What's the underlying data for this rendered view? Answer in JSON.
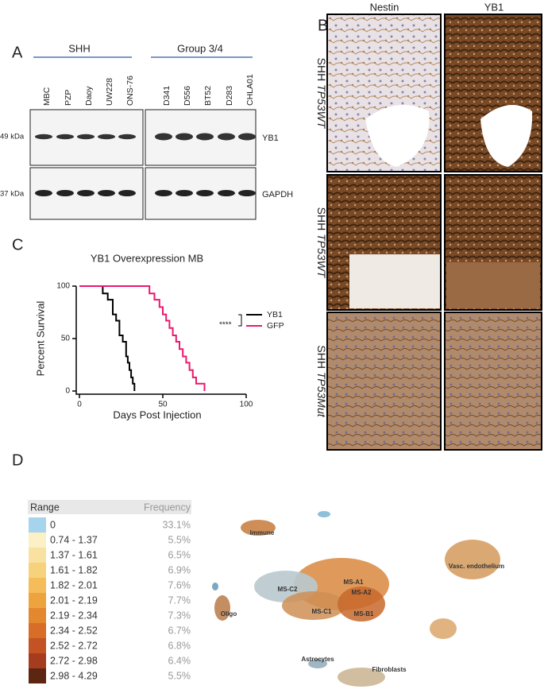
{
  "panel_a": {
    "label": "A",
    "groups": [
      "SHH",
      "Group 3/4"
    ],
    "lanes": [
      "MBC",
      "PZP",
      "Daoy",
      "UW228",
      "ONS-76",
      "D341",
      "D556",
      "BT52",
      "D283",
      "CHLA01"
    ],
    "markers": [
      "49 kDa",
      "37 kDa"
    ],
    "proteins": [
      "YB1",
      "GAPDH"
    ]
  },
  "panel_b": {
    "label": "B",
    "columns": [
      "Nestin",
      "YB1"
    ],
    "rows": [
      {
        "prefix": "SHH",
        "genotype": "TP53WT"
      },
      {
        "prefix": "SHH",
        "genotype": "TP53WT"
      },
      {
        "prefix": "SHH",
        "genotype": "TP53Mut"
      }
    ]
  },
  "chart_data": {
    "type": "line",
    "panel": "C",
    "title": "YB1 Overexpression MB",
    "x_label": "Days Post Injection",
    "y_label": "Percent Survival",
    "xlim": [
      0,
      100
    ],
    "xticks": [
      0,
      50,
      100
    ],
    "ylim": [
      0,
      100
    ],
    "yticks": [
      0,
      50,
      100
    ],
    "significance": "****",
    "step": true,
    "series": [
      {
        "name": "YB1",
        "color": "#000000",
        "x": [
          0,
          14,
          17,
          20,
          22,
          24,
          26,
          28,
          29,
          30,
          31,
          32,
          33
        ],
        "values": [
          100,
          93,
          87,
          73,
          67,
          53,
          47,
          33,
          27,
          20,
          13,
          7,
          0
        ]
      },
      {
        "name": "GFP",
        "color": "#e8196e",
        "x": [
          0,
          42,
          45,
          48,
          50,
          52,
          54,
          56,
          58,
          60,
          62,
          64,
          66,
          68,
          70,
          75
        ],
        "values": [
          100,
          93,
          87,
          80,
          73,
          67,
          60,
          53,
          47,
          40,
          33,
          27,
          20,
          13,
          7,
          0
        ]
      }
    ]
  },
  "panel_d": {
    "label": "D",
    "header": [
      "Range",
      "Frequency"
    ],
    "rows": [
      {
        "range": "0",
        "frequency": "33.1%",
        "color": "#a6d4ec"
      },
      {
        "range": "0.74 - 1.37",
        "frequency": "5.5%",
        "color": "#fbf0c6"
      },
      {
        "range": "1.37 - 1.61",
        "frequency": "6.5%",
        "color": "#f9e2a1"
      },
      {
        "range": "1.61 - 1.82",
        "frequency": "6.9%",
        "color": "#f7d27c"
      },
      {
        "range": "1.82 - 2.01",
        "frequency": "7.6%",
        "color": "#f5bd59"
      },
      {
        "range": "2.01 - 2.19",
        "frequency": "7.7%",
        "color": "#eda43e"
      },
      {
        "range": "2.19 - 2.34",
        "frequency": "7.3%",
        "color": "#e4882f"
      },
      {
        "range": "2.34 - 2.52",
        "frequency": "6.7%",
        "color": "#d86d28"
      },
      {
        "range": "2.52 - 2.72",
        "frequency": "6.8%",
        "color": "#c45324"
      },
      {
        "range": "2.72 - 2.98",
        "frequency": "6.4%",
        "color": "#a63c1e"
      },
      {
        "range": "2.98 - 4.29",
        "frequency": "5.5%",
        "color": "#5c2610"
      }
    ],
    "clusters": [
      "Immune",
      "MS-C2",
      "MS-A1",
      "MS-A2",
      "MS-C1",
      "MS-B1",
      "Oligo",
      "Vasc. endothelium",
      "Astrocytes",
      "Fibroblasts"
    ]
  }
}
